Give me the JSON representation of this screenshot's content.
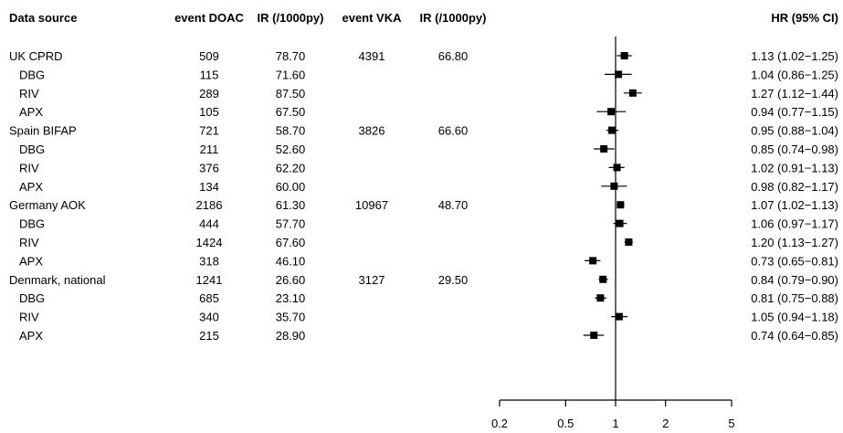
{
  "chart_data": {
    "type": "forest",
    "columns": {
      "source": "Data source",
      "event_doac": "event DOAC",
      "ir_doac": "IR (/1000py)",
      "event_vka": "event VKA",
      "ir_vka": "IR (/1000py)",
      "hr": "HR (95% CI)"
    },
    "x_axis": {
      "scale": "log",
      "ticks": [
        "0.2",
        "0.5",
        "1",
        "2",
        "5"
      ],
      "tick_values": [
        0.2,
        0.5,
        1,
        2,
        5
      ],
      "reference_line": 1,
      "range": [
        0.2,
        5
      ]
    },
    "rows": [
      {
        "source": "UK CPRD",
        "indent": false,
        "event_doac": "509",
        "ir_doac": "78.70",
        "event_vka": "4391",
        "ir_vka": "66.80",
        "hr": 1.13,
        "lo": 1.02,
        "hi": 1.25,
        "hr_text": "1.13 (1.02−1.25)"
      },
      {
        "source": "DBG",
        "indent": true,
        "event_doac": "115",
        "ir_doac": "71.60",
        "event_vka": "",
        "ir_vka": "",
        "hr": 1.04,
        "lo": 0.86,
        "hi": 1.25,
        "hr_text": "1.04 (0.86−1.25)"
      },
      {
        "source": "RIV",
        "indent": true,
        "event_doac": "289",
        "ir_doac": "87.50",
        "event_vka": "",
        "ir_vka": "",
        "hr": 1.27,
        "lo": 1.12,
        "hi": 1.44,
        "hr_text": "1.27 (1.12−1.44)"
      },
      {
        "source": "APX",
        "indent": true,
        "event_doac": "105",
        "ir_doac": "67.50",
        "event_vka": "",
        "ir_vka": "",
        "hr": 0.94,
        "lo": 0.77,
        "hi": 1.15,
        "hr_text": "0.94 (0.77−1.15)"
      },
      {
        "source": "Spain BIFAP",
        "indent": false,
        "event_doac": "721",
        "ir_doac": "58.70",
        "event_vka": "3826",
        "ir_vka": "66.60",
        "hr": 0.95,
        "lo": 0.88,
        "hi": 1.04,
        "hr_text": "0.95 (0.88−1.04)"
      },
      {
        "source": "DBG",
        "indent": true,
        "event_doac": "211",
        "ir_doac": "52.60",
        "event_vka": "",
        "ir_vka": "",
        "hr": 0.85,
        "lo": 0.74,
        "hi": 0.98,
        "hr_text": "0.85 (0.74−0.98)"
      },
      {
        "source": "RIV",
        "indent": true,
        "event_doac": "376",
        "ir_doac": "62.20",
        "event_vka": "",
        "ir_vka": "",
        "hr": 1.02,
        "lo": 0.91,
        "hi": 1.13,
        "hr_text": "1.02 (0.91−1.13)"
      },
      {
        "source": "APX",
        "indent": true,
        "event_doac": "134",
        "ir_doac": "60.00",
        "event_vka": "",
        "ir_vka": "",
        "hr": 0.98,
        "lo": 0.82,
        "hi": 1.17,
        "hr_text": "0.98 (0.82−1.17)"
      },
      {
        "source": "Germany AOK",
        "indent": false,
        "event_doac": "2186",
        "ir_doac": "61.30",
        "event_vka": "10967",
        "ir_vka": "48.70",
        "hr": 1.07,
        "lo": 1.02,
        "hi": 1.13,
        "hr_text": "1.07 (1.02−1.13)"
      },
      {
        "source": "DBG",
        "indent": true,
        "event_doac": "444",
        "ir_doac": "57.70",
        "event_vka": "",
        "ir_vka": "",
        "hr": 1.06,
        "lo": 0.97,
        "hi": 1.17,
        "hr_text": "1.06 (0.97−1.17)"
      },
      {
        "source": "RIV",
        "indent": true,
        "event_doac": "1424",
        "ir_doac": "67.60",
        "event_vka": "",
        "ir_vka": "",
        "hr": 1.2,
        "lo": 1.13,
        "hi": 1.27,
        "hr_text": "1.20 (1.13−1.27)"
      },
      {
        "source": "APX",
        "indent": true,
        "event_doac": "318",
        "ir_doac": "46.10",
        "event_vka": "",
        "ir_vka": "",
        "hr": 0.73,
        "lo": 0.65,
        "hi": 0.81,
        "hr_text": "0.73 (0.65−0.81)"
      },
      {
        "source": "Denmark, national",
        "indent": false,
        "event_doac": "1241",
        "ir_doac": "26.60",
        "event_vka": "3127",
        "ir_vka": "29.50",
        "hr": 0.84,
        "lo": 0.79,
        "hi": 0.9,
        "hr_text": "0.84 (0.79−0.90)"
      },
      {
        "source": "DBG",
        "indent": true,
        "event_doac": "685",
        "ir_doac": "23.10",
        "event_vka": "",
        "ir_vka": "",
        "hr": 0.81,
        "lo": 0.75,
        "hi": 0.88,
        "hr_text": "0.81 (0.75−0.88)"
      },
      {
        "source": "RIV",
        "indent": true,
        "event_doac": "340",
        "ir_doac": "35.70",
        "event_vka": "",
        "ir_vka": "",
        "hr": 1.05,
        "lo": 0.94,
        "hi": 1.18,
        "hr_text": "1.05 (0.94−1.18)"
      },
      {
        "source": "APX",
        "indent": true,
        "event_doac": "215",
        "ir_doac": "28.90",
        "event_vka": "",
        "ir_vka": "",
        "hr": 0.74,
        "lo": 0.64,
        "hi": 0.85,
        "hr_text": "0.74 (0.64−0.85)"
      }
    ]
  }
}
